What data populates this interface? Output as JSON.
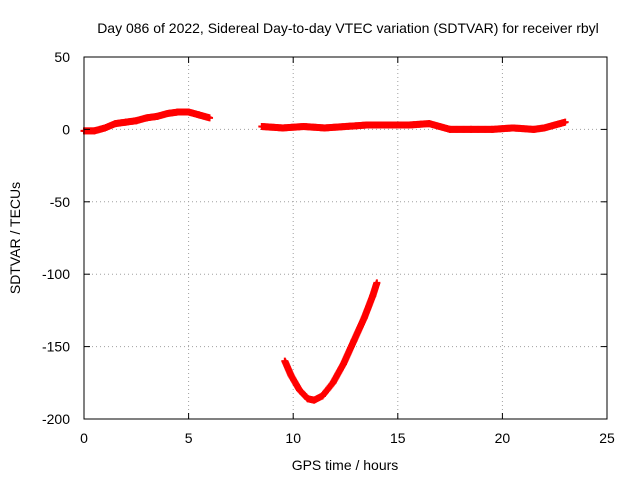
{
  "chart_data": {
    "type": "scatter",
    "title": "Day 086 of 2022, Sidereal Day-to-day VTEC variation (SDTVAR) for receiver rbyl",
    "xlabel": "GPS time / hours",
    "ylabel": "SDTVAR / TECUs",
    "xlim": [
      0,
      25
    ],
    "ylim": [
      -200,
      50
    ],
    "xticks": [
      0,
      5,
      10,
      15,
      20,
      25
    ],
    "yticks": [
      -200,
      -150,
      -100,
      -50,
      0,
      50
    ],
    "xtick_labels": [
      "0",
      "5",
      "10",
      "15",
      "20",
      "25"
    ],
    "ytick_labels": [
      "-200",
      "-150",
      "-100",
      "-50",
      "0",
      "50"
    ],
    "grid": true,
    "marker": "plus",
    "series_color": "#ff0000",
    "series": [
      {
        "name": "segment-1",
        "points": [
          [
            0.0,
            -1
          ],
          [
            0.5,
            -1
          ],
          [
            1.0,
            1
          ],
          [
            1.5,
            4
          ],
          [
            2.0,
            5
          ],
          [
            2.5,
            6
          ],
          [
            3.0,
            8
          ],
          [
            3.5,
            9
          ],
          [
            4.0,
            11
          ],
          [
            4.5,
            12
          ],
          [
            5.0,
            12
          ],
          [
            5.5,
            10
          ],
          [
            6.0,
            8
          ]
        ]
      },
      {
        "name": "segment-2",
        "points": [
          [
            8.5,
            2
          ],
          [
            9.5,
            1
          ],
          [
            10.5,
            2
          ],
          [
            11.5,
            1
          ],
          [
            12.5,
            2
          ],
          [
            13.5,
            3
          ],
          [
            14.5,
            3
          ],
          [
            15.5,
            3
          ],
          [
            16.5,
            4
          ],
          [
            17.0,
            2
          ],
          [
            17.5,
            0
          ],
          [
            18.5,
            0
          ],
          [
            19.5,
            0
          ],
          [
            20.5,
            1
          ],
          [
            21.5,
            0
          ],
          [
            22.0,
            1
          ],
          [
            22.5,
            3
          ],
          [
            23.0,
            5
          ]
        ]
      },
      {
        "name": "segment-3",
        "points": [
          [
            9.6,
            -160
          ],
          [
            9.9,
            -170
          ],
          [
            10.3,
            -180
          ],
          [
            10.7,
            -186
          ],
          [
            11.0,
            -187
          ],
          [
            11.4,
            -184
          ],
          [
            11.9,
            -175
          ],
          [
            12.4,
            -162
          ],
          [
            12.9,
            -146
          ],
          [
            13.4,
            -130
          ],
          [
            13.8,
            -115
          ],
          [
            14.0,
            -106
          ]
        ]
      }
    ]
  }
}
